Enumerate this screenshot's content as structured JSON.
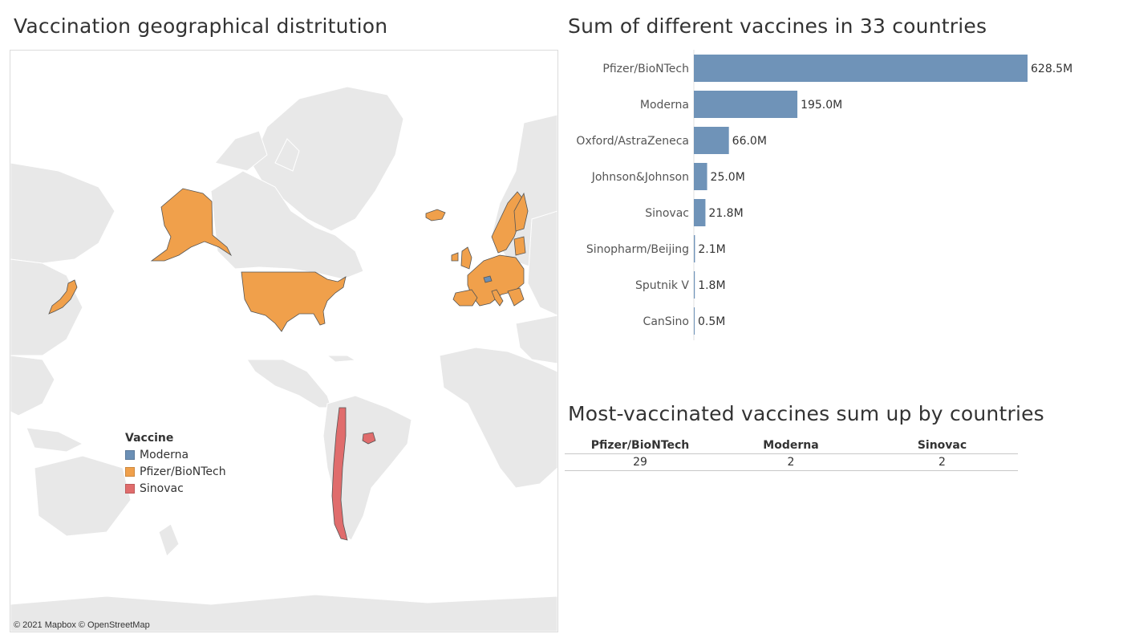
{
  "map": {
    "title": "Vaccination geographical distritution",
    "attribution": "© 2021 Mapbox © OpenStreetMap",
    "legend": {
      "title": "Vaccine",
      "items": [
        {
          "label": "Moderna",
          "color": "#6b8fb5"
        },
        {
          "label": "Pfizer/BioNTech",
          "color": "#f0a04b"
        },
        {
          "label": "Sinovac",
          "color": "#e06c6c"
        }
      ]
    }
  },
  "chart_data": [
    {
      "type": "bar",
      "orientation": "horizontal",
      "title": "Sum of different vaccines in 33 countries",
      "categories": [
        "Pfizer/BioNTech",
        "Moderna",
        "Oxford/AstraZeneca",
        "Johnson&Johnson",
        "Sinovac",
        "Sinopharm/Beijing",
        "Sputnik V",
        "CanSino"
      ],
      "values": [
        628.5,
        195.0,
        66.0,
        25.0,
        21.8,
        2.1,
        1.8,
        0.5
      ],
      "value_labels": [
        "628.5M",
        "195.0M",
        "66.0M",
        "25.0M",
        "21.8M",
        "2.1M",
        "1.8M",
        "0.5M"
      ],
      "unit": "M",
      "color": "#6f93b8"
    },
    {
      "type": "table",
      "title": "Most-vaccinated vaccines sum up by countries",
      "columns": [
        "Pfizer/BioNTech",
        "Moderna",
        "Sinovac"
      ],
      "rows": [
        [
          "29",
          "2",
          "2"
        ]
      ]
    }
  ]
}
